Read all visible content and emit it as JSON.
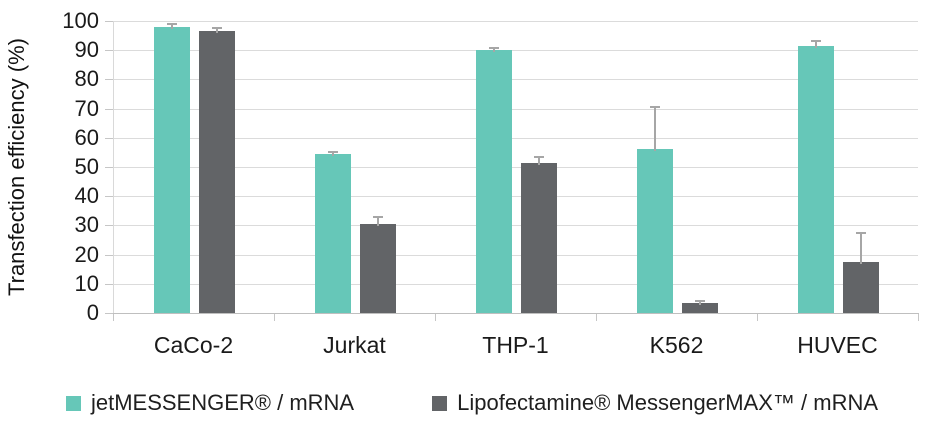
{
  "chart_data": {
    "type": "bar",
    "title": "",
    "xlabel": "",
    "ylabel": "Transfection efficiency (%)",
    "ylim": [
      0,
      100
    ],
    "ytick_step": 10,
    "grid": true,
    "legend_position": "bottom",
    "categories": [
      "CaCo-2",
      "Jurkat",
      "THP-1",
      "K562",
      "HUVEC"
    ],
    "series": [
      {
        "name": "jetMESSENGER® / mRNA",
        "color": "#66C7B8",
        "values": [
          98,
          54.5,
          90,
          56,
          91.5
        ],
        "errors": [
          1,
          0.5,
          0.8,
          14.5,
          1.8
        ]
      },
      {
        "name": "Lipofectamine® MessengerMAX™ / mRNA",
        "color": "#626467",
        "values": [
          96.5,
          30.5,
          51.5,
          3.5,
          17.5
        ],
        "errors": [
          1,
          2.5,
          1.8,
          0.5,
          10
        ]
      }
    ],
    "colors": {
      "gridline": "#DBDBDB",
      "axis": "#BFBFBF",
      "error_bar": "#A6A6A6",
      "text": "#1a1a1a"
    }
  }
}
